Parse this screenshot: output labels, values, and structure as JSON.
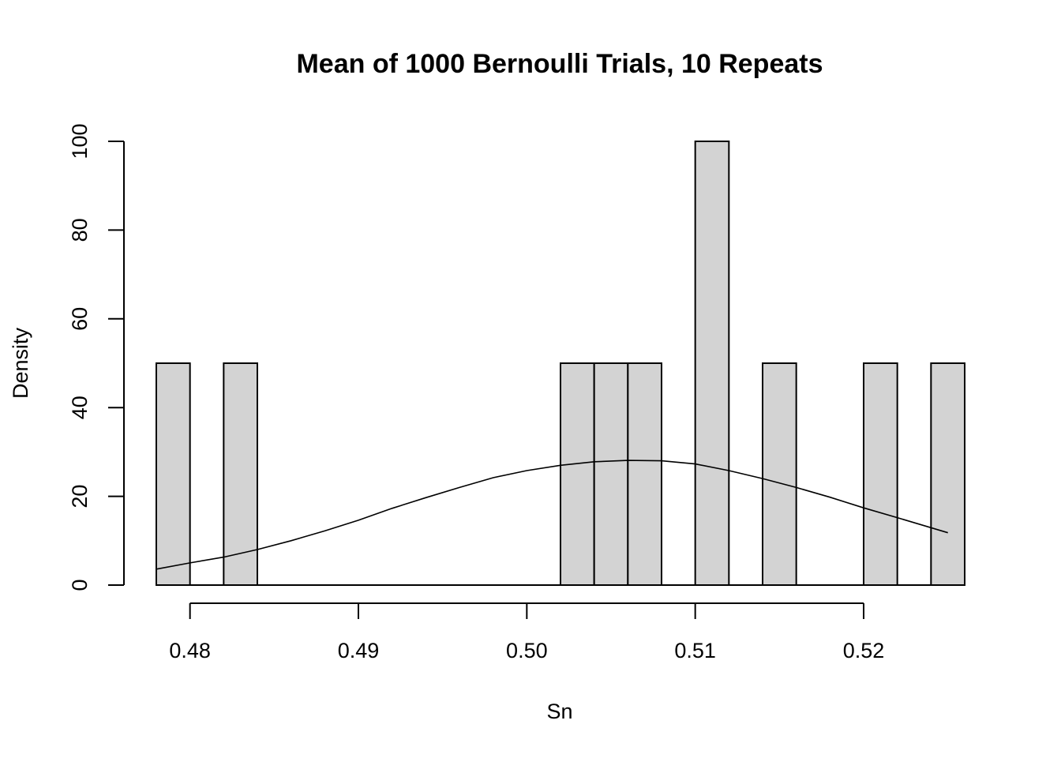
{
  "chart_data": {
    "type": "bar",
    "title": "Mean of 1000 Bernoulli Trials, 10 Repeats",
    "xlabel": "Sn",
    "ylabel": "Density",
    "xlim": [
      0.478,
      0.526
    ],
    "ylim": [
      0,
      100
    ],
    "x_ticks": [
      0.48,
      0.49,
      0.5,
      0.51,
      0.52
    ],
    "x_tick_labels": [
      "0.48",
      "0.49",
      "0.50",
      "0.51",
      "0.52"
    ],
    "y_ticks": [
      0,
      20,
      40,
      60,
      80,
      100
    ],
    "y_tick_labels": [
      "0",
      "20",
      "40",
      "60",
      "80",
      "100"
    ],
    "bin_width": 0.002,
    "bars": [
      {
        "x0": 0.478,
        "x1": 0.48,
        "density": 50
      },
      {
        "x0": 0.482,
        "x1": 0.484,
        "density": 50
      },
      {
        "x0": 0.502,
        "x1": 0.504,
        "density": 50
      },
      {
        "x0": 0.504,
        "x1": 0.506,
        "density": 50
      },
      {
        "x0": 0.506,
        "x1": 0.508,
        "density": 50
      },
      {
        "x0": 0.51,
        "x1": 0.512,
        "density": 100
      },
      {
        "x0": 0.514,
        "x1": 0.516,
        "density": 50
      },
      {
        "x0": 0.52,
        "x1": 0.522,
        "density": 50
      },
      {
        "x0": 0.524,
        "x1": 0.526,
        "density": 50
      }
    ],
    "curve": {
      "type": "line",
      "x": [
        0.478,
        0.48,
        0.482,
        0.484,
        0.486,
        0.488,
        0.49,
        0.492,
        0.494,
        0.496,
        0.498,
        0.5,
        0.502,
        0.504,
        0.506,
        0.508,
        0.51,
        0.512,
        0.514,
        0.516,
        0.518,
        0.52,
        0.522,
        0.525
      ],
      "y": [
        3.6,
        5.0,
        6.3,
        8.0,
        10.0,
        12.2,
        14.6,
        17.3,
        19.7,
        22.0,
        24.2,
        25.8,
        27.0,
        27.8,
        28.1,
        28.0,
        27.3,
        25.8,
        24.0,
        22.0,
        19.8,
        17.4,
        15.2,
        11.8
      ]
    },
    "colors": {
      "bar_fill": "#d3d3d3",
      "bar_stroke": "#000000",
      "curve": "#000000",
      "background": "#ffffff"
    }
  }
}
